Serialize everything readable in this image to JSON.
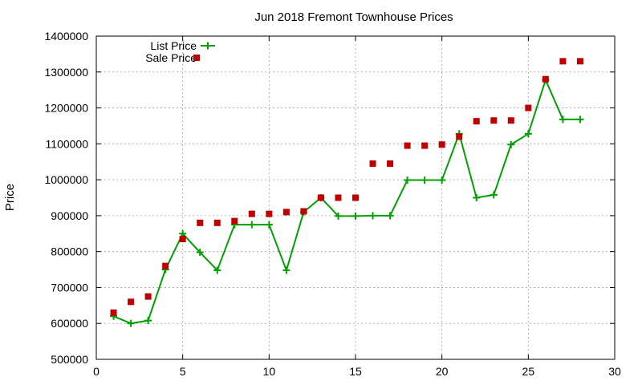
{
  "chart_data": {
    "type": "line",
    "title": "Jun 2018 Fremont Townhouse Prices",
    "xlabel": "",
    "ylabel": "Price",
    "xlim": [
      0,
      30
    ],
    "ylim": [
      500000,
      1400000
    ],
    "xticks": [
      0,
      5,
      10,
      15,
      20,
      25,
      30
    ],
    "yticks": [
      500000,
      600000,
      700000,
      800000,
      900000,
      1000000,
      1100000,
      1200000,
      1300000,
      1400000
    ],
    "grid": true,
    "legend_position": "top-left",
    "series": [
      {
        "name": "List Price",
        "style": "line-with-plus-markers",
        "color": "#00a000",
        "x": [
          1,
          2,
          3,
          4,
          5,
          6,
          7,
          8,
          9,
          10,
          11,
          12,
          13,
          14,
          15,
          16,
          17,
          18,
          19,
          20,
          21,
          22,
          23,
          24,
          25,
          26,
          27,
          28
        ],
        "values": [
          620000,
          600000,
          608000,
          750000,
          850000,
          798000,
          748000,
          875000,
          875000,
          875000,
          748000,
          910000,
          950000,
          899000,
          899000,
          900000,
          900000,
          999000,
          999000,
          999000,
          1128000,
          950000,
          958000,
          1098000,
          1128000,
          1278000,
          1168000,
          1168000
        ]
      },
      {
        "name": "Sale Price",
        "style": "square-markers",
        "color": "#c00000",
        "x": [
          1,
          2,
          3,
          4,
          5,
          6,
          7,
          8,
          9,
          10,
          11,
          12,
          13,
          14,
          15,
          16,
          17,
          18,
          19,
          20,
          21,
          22,
          23,
          24,
          25,
          26,
          27,
          28
        ],
        "values": [
          630000,
          660000,
          675000,
          760000,
          835000,
          880000,
          880000,
          885000,
          905000,
          905000,
          910000,
          912000,
          950000,
          950000,
          950000,
          1045000,
          1045000,
          1095000,
          1095000,
          1098000,
          1120000,
          1163000,
          1165000,
          1165000,
          1200000,
          1280000,
          1330000,
          1330000
        ]
      }
    ]
  }
}
